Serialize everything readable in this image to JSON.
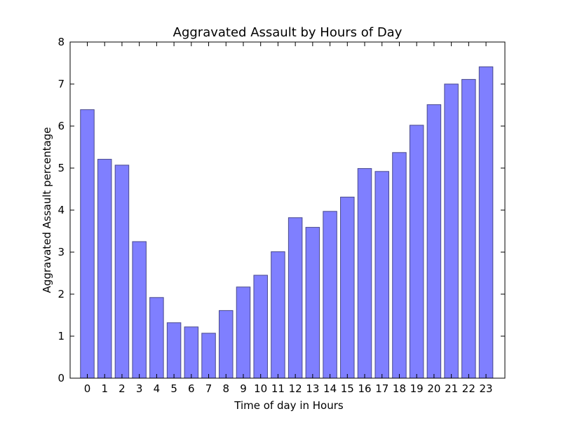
{
  "chart_data": {
    "type": "bar",
    "title": "Aggravated Assault by Hours of Day",
    "xlabel": "Time of day in Hours",
    "ylabel": "Aggravated Assault percentage",
    "categories": [
      "0",
      "1",
      "2",
      "3",
      "4",
      "5",
      "6",
      "7",
      "8",
      "9",
      "10",
      "11",
      "12",
      "13",
      "14",
      "15",
      "16",
      "17",
      "18",
      "19",
      "20",
      "21",
      "22",
      "23"
    ],
    "values": [
      6.39,
      5.21,
      5.07,
      3.25,
      1.92,
      1.32,
      1.22,
      1.07,
      1.61,
      2.17,
      2.45,
      3.01,
      3.82,
      3.59,
      3.97,
      4.31,
      4.99,
      4.92,
      5.37,
      6.02,
      6.51,
      7.0,
      7.11,
      7.41
    ],
    "ylim": [
      0,
      8
    ],
    "yticks": [
      "0",
      "1",
      "2",
      "3",
      "4",
      "5",
      "6",
      "7",
      "8"
    ],
    "grid": false,
    "bar_color": "#7f7fff",
    "bar_edge_color": "#4a4a8c"
  }
}
